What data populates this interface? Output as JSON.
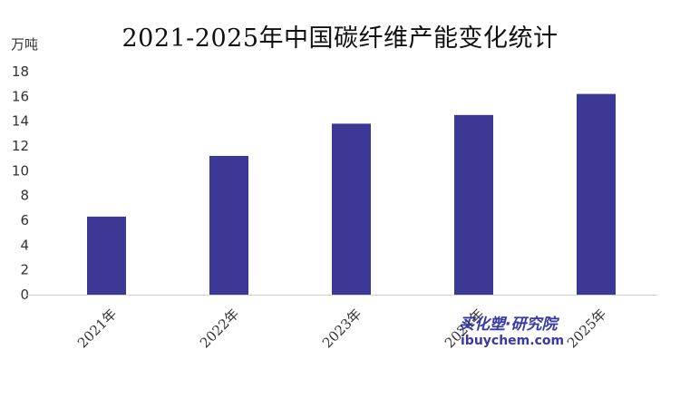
{
  "chart_data": {
    "type": "bar",
    "title": "2021-2025年中国碳纤维产能变化统计",
    "unit_label": "万吨",
    "categories": [
      "2021年",
      "2022年",
      "2023年",
      "2024年",
      "2025年"
    ],
    "values": [
      6.3,
      11.2,
      13.8,
      14.5,
      16.2
    ],
    "ylim": [
      0,
      18
    ],
    "yticks": [
      "0",
      "2",
      "4",
      "6",
      "8",
      "10",
      "12",
      "14",
      "16",
      "18"
    ],
    "grid": false,
    "legend": "none",
    "bar_color": "#3b3995",
    "axis_color": "#d0d0d0"
  },
  "watermark": {
    "cn": "买化塑·研究院",
    "en": "ibuychem.com"
  }
}
